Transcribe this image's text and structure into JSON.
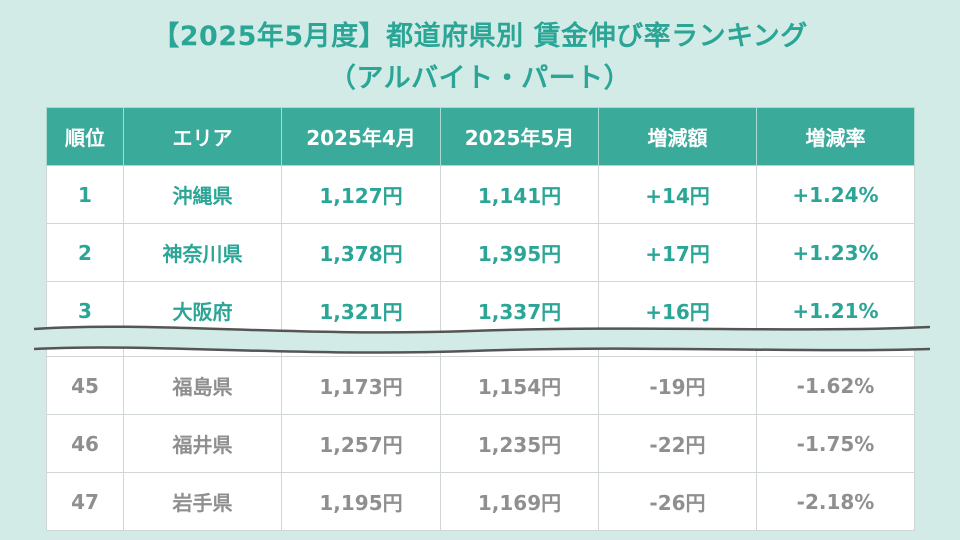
{
  "title_line1": "【2025年5月度】都道府県別 賃金伸び率ランキング",
  "title_line2": "（アルバイト・パート）",
  "chart_data": {
    "type": "table",
    "columns": [
      "順位",
      "エリア",
      "2025年4月",
      "2025年5月",
      "増減額",
      "増減率"
    ],
    "top_rows": [
      {
        "rank": "1",
        "area": "沖縄県",
        "apr": "1,127円",
        "may": "1,141円",
        "diff": "+14円",
        "rate": "+1.24%"
      },
      {
        "rank": "2",
        "area": "神奈川県",
        "apr": "1,378円",
        "may": "1,395円",
        "diff": "+17円",
        "rate": "+1.23%"
      },
      {
        "rank": "3",
        "area": "大阪府",
        "apr": "1,321円",
        "may": "1,337円",
        "diff": "+16円",
        "rate": "+1.21%"
      }
    ],
    "bottom_rows": [
      {
        "rank": "45",
        "area": "福島県",
        "apr": "1,173円",
        "may": "1,154円",
        "diff": "-19円",
        "rate": "-1.62%"
      },
      {
        "rank": "46",
        "area": "福井県",
        "apr": "1,257円",
        "may": "1,235円",
        "diff": "-22円",
        "rate": "-1.75%"
      },
      {
        "rank": "47",
        "area": "岩手県",
        "apr": "1,195円",
        "may": "1,169円",
        "diff": "-26円",
        "rate": "-2.18%"
      }
    ]
  },
  "colors": {
    "background": "#d3ebe6",
    "accent": "#2aa596",
    "header_bg": "#3aaa9b",
    "bottom_text": "#8f8f8f"
  }
}
